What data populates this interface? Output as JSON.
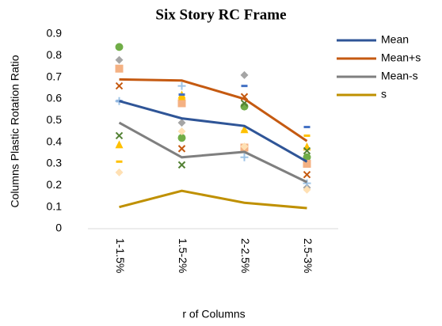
{
  "chart_data": {
    "type": "line",
    "title": "Six Story RC Frame",
    "x_label": "r of Columns",
    "y_label": "Columns Plastic Rotation Ratio",
    "categories": [
      "1-1.5%",
      "1.5-2%",
      "2-2.5%",
      "2.5-3%"
    ],
    "series": [
      {
        "name": "Mean",
        "color": "#2f5597",
        "values": [
          0.59,
          0.51,
          0.475,
          0.31
        ]
      },
      {
        "name": "Mean+s",
        "color": "#c55a11",
        "values": [
          0.69,
          0.685,
          0.6,
          0.405
        ]
      },
      {
        "name": "Mean-s",
        "color": "#7f7f7f",
        "values": [
          0.49,
          0.33,
          0.355,
          0.215
        ]
      },
      {
        "name": "s",
        "color": "#bf9000",
        "values": [
          0.1,
          0.175,
          0.12,
          0.095
        ]
      }
    ],
    "markers": [
      {
        "color": "#70ad47",
        "marker": "circle",
        "values": [
          0.84,
          0.42,
          0.565,
          0.33
        ]
      },
      {
        "color": "#f4b183",
        "marker": "square",
        "values": [
          0.74,
          0.58,
          0.375,
          0.3
        ]
      },
      {
        "color": "#a5a5a5",
        "marker": "diamond",
        "values": [
          0.78,
          0.49,
          0.71,
          0.19
        ]
      },
      {
        "color": "#ffc000",
        "marker": "triangle",
        "values": [
          0.39,
          0.62,
          0.46,
          0.38
        ]
      },
      {
        "color": "#4472c4",
        "marker": "dash",
        "values": [
          0.59,
          0.62,
          0.66,
          0.47
        ]
      },
      {
        "color": "#548235",
        "marker": "x",
        "values": [
          0.43,
          0.295,
          0.58,
          0.36
        ]
      },
      {
        "color": "#c55a11",
        "marker": "x",
        "values": [
          0.66,
          0.37,
          0.61,
          0.25
        ]
      },
      {
        "color": "#9dc3e6",
        "marker": "plus",
        "values": [
          0.59,
          0.66,
          0.33,
          0.21
        ]
      },
      {
        "color": "#ffe0b3",
        "marker": "diamond",
        "values": [
          0.26,
          0.45,
          0.38,
          0.18
        ]
      },
      {
        "color": "#ffc000",
        "marker": "dash",
        "values": [
          0.31,
          0.6,
          0.45,
          0.43
        ]
      }
    ],
    "ylim": [
      0,
      0.9
    ],
    "yticks": [
      0,
      0.1,
      0.2,
      0.3,
      0.4,
      0.5,
      0.6,
      0.7,
      0.8,
      0.9
    ],
    "grid": false,
    "legend": "right"
  }
}
